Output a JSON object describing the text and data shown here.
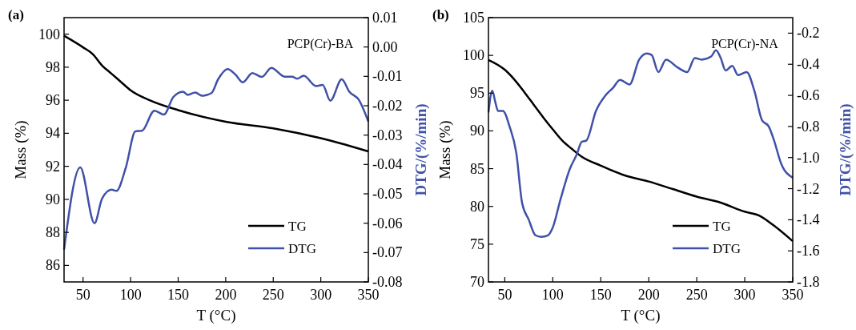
{
  "chart_data": [
    {
      "type": "line",
      "title": "(a)",
      "xlabel": "T (°C)",
      "ylabel": "Mass (%)",
      "y2label": "DTG/(%/min)",
      "annotations": [
        "PCP(Cr)-BA"
      ],
      "xlim": [
        30,
        350
      ],
      "xticks": [
        50,
        100,
        150,
        200,
        250,
        300,
        350
      ],
      "ylim": [
        85,
        101
      ],
      "yticks": [
        86,
        88,
        90,
        92,
        94,
        96,
        98,
        100
      ],
      "y2lim": [
        -0.08,
        0.01
      ],
      "y2ticks": [
        {
          "value": -0.08,
          "label": "-0.08"
        },
        {
          "value": -0.07,
          "label": "-0.07"
        },
        {
          "value": -0.06,
          "label": "-0.06"
        },
        {
          "value": -0.05,
          "label": "-0.05"
        },
        {
          "value": -0.04,
          "label": "-0.04"
        },
        {
          "value": -0.03,
          "label": "-0.03"
        },
        {
          "value": -0.02,
          "label": "-0.02"
        },
        {
          "value": -0.01,
          "label": "-0.01"
        },
        {
          "value": 0,
          "label": "0.00"
        },
        {
          "value": 0.01,
          "label": "0.01"
        }
      ],
      "legend": "bottom right",
      "grid": false,
      "line_style": "solid",
      "series": [
        {
          "name": "TG",
          "color": "#000000",
          "x": [
            30,
            50,
            60,
            70,
            80,
            90,
            100,
            120,
            150,
            200,
            250,
            300,
            320,
            350
          ],
          "values": [
            99.9,
            99.2,
            98.8,
            98.1,
            97.6,
            97.1,
            96.6,
            96.0,
            95.4,
            94.7,
            94.3,
            93.7,
            93.4,
            92.9
          ]
        },
        {
          "name": "DTG",
          "color": "#3f51a8",
          "axis": "y2",
          "x": [
            30,
            47,
            62,
            70,
            80,
            85,
            95,
            105,
            112,
            125,
            135,
            145,
            155,
            160,
            168,
            175,
            185,
            192,
            202,
            210,
            218,
            228,
            238,
            248,
            262,
            270,
            275,
            282,
            295,
            302,
            310,
            322,
            330,
            340,
            350
          ],
          "values": [
            -0.069,
            -0.041,
            -0.06,
            -0.0516,
            -0.0486,
            -0.049,
            -0.041,
            -0.0287,
            -0.0285,
            -0.0217,
            -0.023,
            -0.017,
            -0.0152,
            -0.0163,
            -0.0155,
            -0.0166,
            -0.0157,
            -0.011,
            -0.0075,
            -0.0093,
            -0.012,
            -0.0089,
            -0.0102,
            -0.0071,
            -0.0101,
            -0.0101,
            -0.0108,
            -0.0098,
            -0.0133,
            -0.0129,
            -0.0183,
            -0.011,
            -0.0152,
            -0.018,
            -0.0254
          ]
        }
      ]
    },
    {
      "type": "line",
      "title": "(b)",
      "xlabel": "T (°C)",
      "ylabel": "Mass (%)",
      "y2label": "DTG/(%/min)",
      "annotations": [
        "PCP(Cr)-NA"
      ],
      "xlim": [
        33,
        350
      ],
      "xticks": [
        50,
        100,
        150,
        200,
        250,
        300,
        350
      ],
      "ylim": [
        70,
        105
      ],
      "yticks": [
        70,
        75,
        80,
        85,
        90,
        95,
        100,
        105
      ],
      "y2lim": [
        -1.8,
        -0.1
      ],
      "y2ticks": [
        {
          "value": -1.8,
          "label": "-1.8"
        },
        {
          "value": -1.6,
          "label": "-1.6"
        },
        {
          "value": -1.4,
          "label": "-1.4"
        },
        {
          "value": -1.2,
          "label": "-1.2"
        },
        {
          "value": -1.0,
          "label": "-1.0"
        },
        {
          "value": -0.8,
          "label": "-0.8"
        },
        {
          "value": -0.6,
          "label": "-0.6"
        },
        {
          "value": -0.4,
          "label": "-0.4"
        },
        {
          "value": -0.2,
          "label": "-0.2"
        }
      ],
      "legend": "bottom right",
      "grid": false,
      "line_style": "solid",
      "series": [
        {
          "name": "TG",
          "color": "#000000",
          "x": [
            33,
            50,
            60,
            70,
            80,
            90,
            100,
            110,
            120,
            130,
            150,
            175,
            200,
            225,
            250,
            275,
            300,
            315,
            330,
            350
          ],
          "values": [
            99.4,
            98.1,
            96.8,
            95.2,
            93.5,
            91.8,
            90.2,
            88.7,
            87.6,
            86.6,
            85.4,
            84.1,
            83.3,
            82.3,
            81.3,
            80.5,
            79.3,
            78.8,
            77.5,
            75.4
          ]
        },
        {
          "name": "DTG",
          "color": "#3f51a8",
          "axis": "y2",
          "x": [
            33,
            37,
            40,
            43,
            48,
            55,
            62,
            68,
            75,
            82,
            88,
            95,
            100,
            108,
            118,
            125,
            130,
            135,
            145,
            155,
            163,
            170,
            180,
            190,
            198,
            203,
            210,
            218,
            230,
            240,
            248,
            255,
            265,
            270,
            275,
            280,
            287,
            293,
            302,
            310,
            318,
            325,
            330,
            338,
            350
          ],
          "values": [
            -0.71,
            -0.57,
            -0.64,
            -0.7,
            -0.7,
            -0.8,
            -0.97,
            -1.29,
            -1.4,
            -1.5,
            -1.51,
            -1.5,
            -1.45,
            -1.27,
            -1.07,
            -0.98,
            -0.9,
            -0.89,
            -0.7,
            -0.6,
            -0.55,
            -0.5,
            -0.53,
            -0.37,
            -0.33,
            -0.34,
            -0.45,
            -0.37,
            -0.42,
            -0.45,
            -0.36,
            -0.37,
            -0.35,
            -0.31,
            -0.36,
            -0.44,
            -0.41,
            -0.47,
            -0.45,
            -0.57,
            -0.76,
            -0.8,
            -0.88,
            -1.04,
            -1.13
          ]
        }
      ]
    }
  ]
}
